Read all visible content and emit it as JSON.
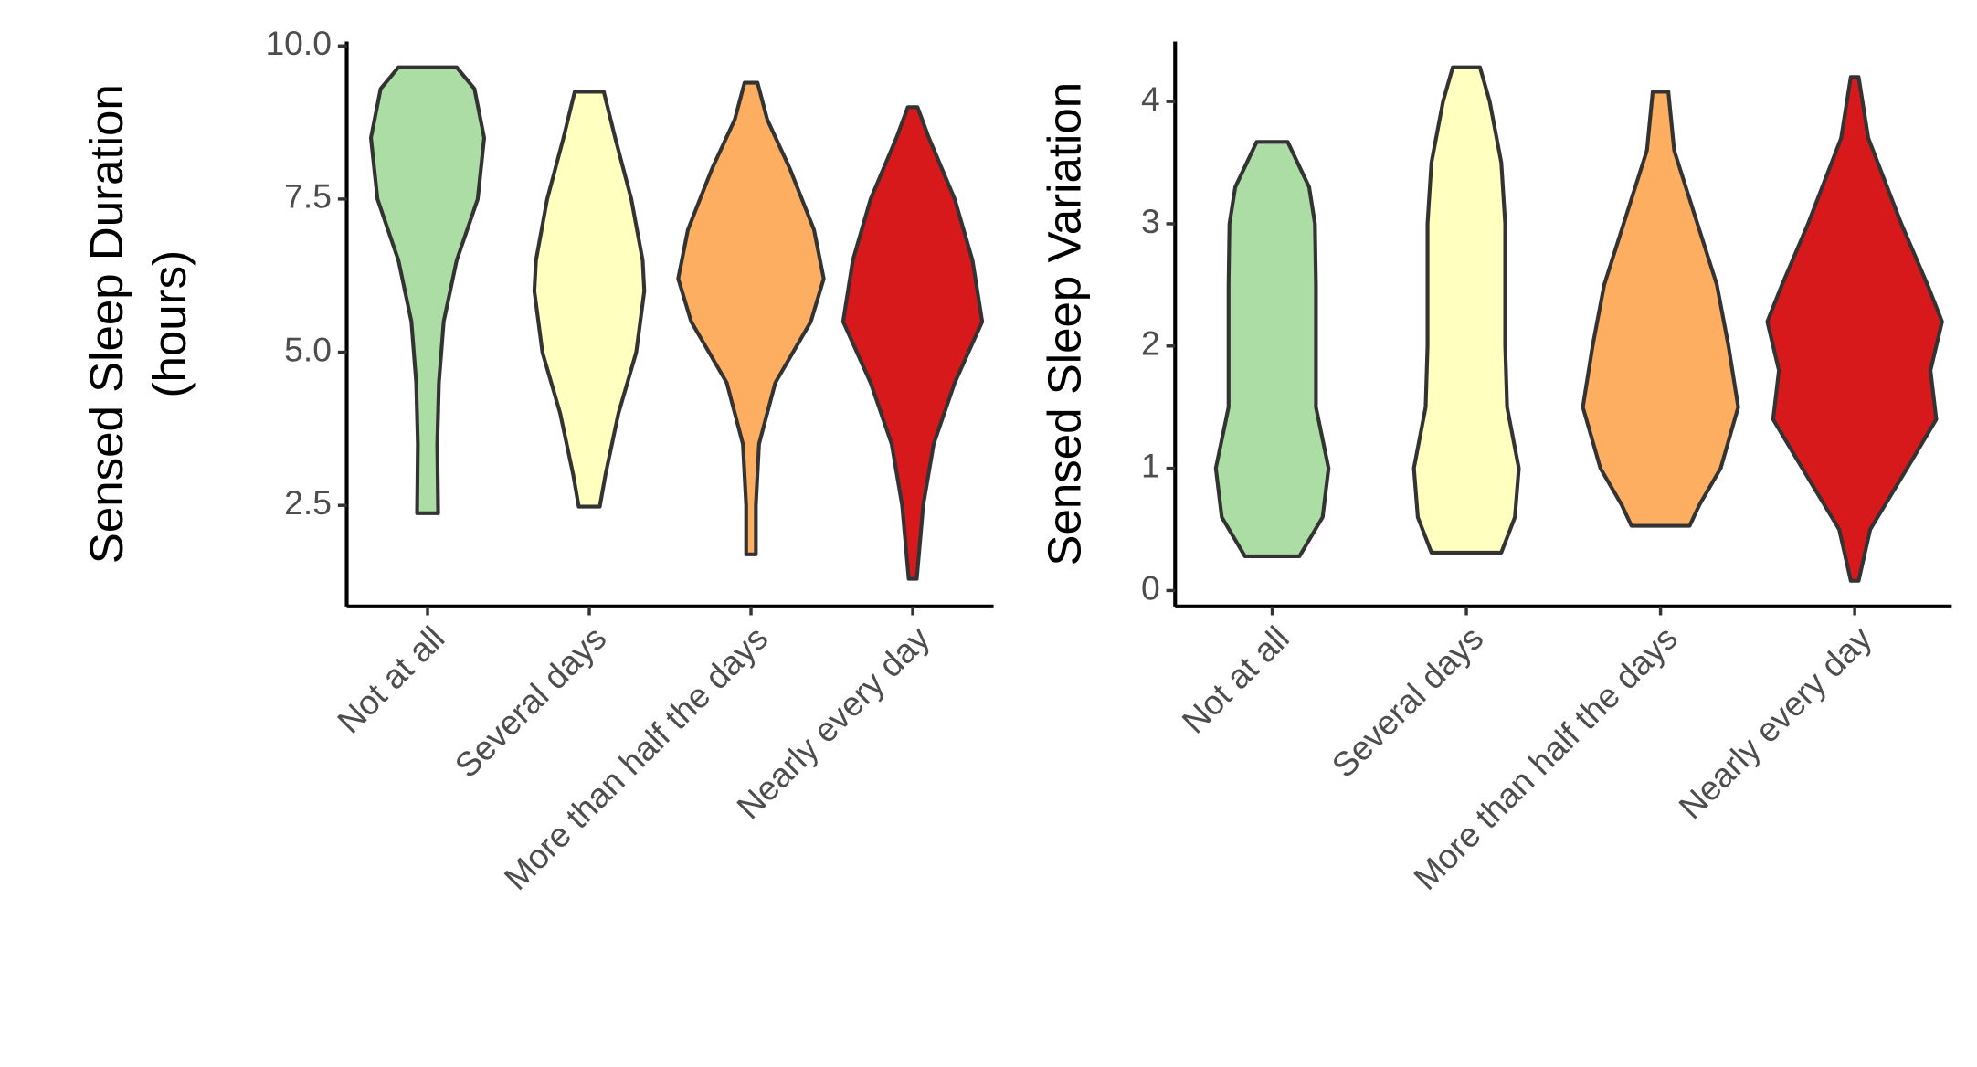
{
  "chart_data": [
    {
      "type": "violin",
      "ylabel": [
        "Sensed Sleep Duration",
        "(hours)"
      ],
      "categories": [
        "Not at all",
        "Several days",
        "More than half the days",
        "Nearly every day"
      ],
      "ylim": [
        0.85,
        10.07
      ],
      "yticks": [
        2.5,
        {
          "value": 5,
          "label": "5.0"
        },
        7.5,
        {
          "value": 10,
          "label": "10.0"
        }
      ],
      "violins": [
        {
          "color": "#abdda4",
          "y": [
            9.65,
            9.3,
            8.5,
            7.5,
            6.5,
            5.5,
            4.5,
            3.5,
            2.37
          ],
          "width": [
            0.18,
            0.29,
            0.35,
            0.31,
            0.18,
            0.1,
            0.07,
            0.06,
            0.065
          ]
        },
        {
          "color": "#ffffbf",
          "y": [
            9.25,
            8.5,
            7.5,
            6.5,
            6.0,
            5.0,
            4.0,
            3.0,
            2.48
          ],
          "width": [
            0.09,
            0.16,
            0.26,
            0.33,
            0.34,
            0.29,
            0.18,
            0.1,
            0.065
          ]
        },
        {
          "color": "#fdae61",
          "y": [
            9.4,
            8.8,
            8.0,
            7.0,
            6.2,
            5.5,
            4.5,
            3.5,
            2.5,
            1.7
          ],
          "width": [
            0.04,
            0.1,
            0.24,
            0.39,
            0.45,
            0.37,
            0.15,
            0.05,
            0.03,
            0.03
          ]
        },
        {
          "color": "#d7191c",
          "y": [
            9.0,
            8.5,
            7.5,
            6.5,
            5.5,
            4.5,
            3.5,
            2.5,
            1.3
          ],
          "width": [
            0.03,
            0.1,
            0.26,
            0.37,
            0.43,
            0.26,
            0.13,
            0.065,
            0.025
          ]
        }
      ]
    },
    {
      "type": "violin",
      "ylabel": [
        "Sensed Sleep Variation"
      ],
      "categories": [
        "Not at all",
        "Several days",
        "More than half the days",
        "Nearly every day"
      ],
      "ylim": [
        -0.13,
        4.49
      ],
      "yticks": [
        0,
        1,
        2,
        3,
        4
      ],
      "violins": [
        {
          "color": "#abdda4",
          "y": [
            3.67,
            3.3,
            3.0,
            2.5,
            2.0,
            1.5,
            1.0,
            0.6,
            0.28
          ],
          "width": [
            0.08,
            0.19,
            0.22,
            0.225,
            0.225,
            0.225,
            0.29,
            0.26,
            0.14
          ]
        },
        {
          "color": "#ffffbf",
          "y": [
            4.28,
            4.0,
            3.5,
            3.0,
            2.0,
            1.5,
            1.0,
            0.6,
            0.31
          ],
          "width": [
            0.07,
            0.12,
            0.18,
            0.2,
            0.2,
            0.21,
            0.27,
            0.25,
            0.18
          ]
        },
        {
          "color": "#fdae61",
          "y": [
            4.08,
            3.6,
            3.0,
            2.5,
            2.0,
            1.5,
            1.0,
            0.7,
            0.53
          ],
          "width": [
            0.04,
            0.07,
            0.19,
            0.29,
            0.35,
            0.4,
            0.31,
            0.2,
            0.15
          ]
        },
        {
          "color": "#d7191c",
          "y": [
            4.2,
            3.7,
            3.0,
            2.5,
            2.2,
            1.8,
            1.4,
            1.0,
            0.5,
            0.08
          ],
          "width": [
            0.02,
            0.07,
            0.24,
            0.375,
            0.45,
            0.39,
            0.42,
            0.27,
            0.08,
            0.02
          ]
        }
      ]
    }
  ]
}
